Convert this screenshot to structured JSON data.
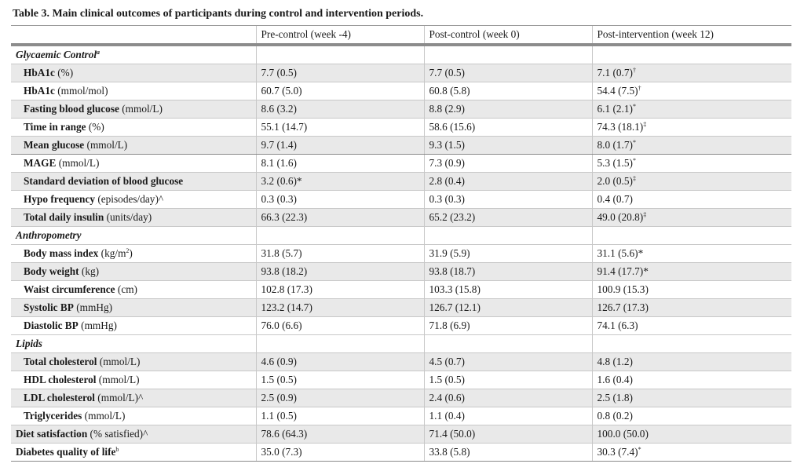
{
  "table": {
    "caption": "Table 3.  Main clinical outcomes of participants during control and intervention periods.",
    "headers": [
      "",
      "Pre-control (week -4)",
      "Post-control (week 0)",
      "Post-intervention (week 12)"
    ],
    "rows": [
      {
        "type": "section",
        "label": "Glycaemic Control",
        "sup": "a"
      },
      {
        "type": "data",
        "bold": "HbA1c",
        "rest": " (%)",
        "sup": "",
        "c1": "7.7 (0.5)",
        "c2": "7.7 (0.5)",
        "c3": "7.1 (0.7)",
        "c3sup": "†",
        "shade": true
      },
      {
        "type": "data",
        "bold": "HbA1c",
        "rest": " (mmol/mol)",
        "sup": "",
        "c1": "60.7 (5.0)",
        "c2": "60.8 (5.8)",
        "c3": "54.4 (7.5)",
        "c3sup": "†",
        "shade": false
      },
      {
        "type": "data",
        "bold": "Fasting blood glucose",
        "rest": " (mmol/L)",
        "sup": "",
        "c1": "8.6 (3.2)",
        "c2": "8.8 (2.9)",
        "c3": "6.1 (2.1)",
        "c3sup": "*",
        "shade": true
      },
      {
        "type": "data",
        "bold": "Time in range",
        "rest": " (%)",
        "sup": "",
        "c1": "55.1 (14.7)",
        "c2": "58.6 (15.6)",
        "c3": "74.3 (18.1)",
        "c3sup": "‡",
        "shade": false
      },
      {
        "type": "data",
        "bold": "Mean glucose",
        "rest": " (mmol/L)",
        "sup": "",
        "c1": "9.7 (1.4)",
        "c2": "9.3 (1.5)",
        "c3": "8.0 (1.7)",
        "c3sup": "*",
        "shade": true,
        "groupEnd": true
      },
      {
        "type": "data",
        "bold": "MAGE",
        "rest": " (mmol/L)",
        "sup": "",
        "c1": "8.1 (1.6)",
        "c2": "7.3 (0.9)",
        "c3": "5.3 (1.5)",
        "c3sup": "*",
        "shade": false
      },
      {
        "type": "data",
        "bold": "Standard deviation of blood glucose",
        "rest": "",
        "sup": "",
        "c1": "3.2 (0.6)*",
        "c2": "2.8 (0.4)",
        "c3": "2.0 (0.5)",
        "c3sup": "‡",
        "shade": true
      },
      {
        "type": "data",
        "bold": "Hypo frequency",
        "rest": " (episodes/day)^",
        "sup": "",
        "c1": "0.3 (0.3)",
        "c2": "0.3 (0.3)",
        "c3": "0.4 (0.7)",
        "c3sup": "",
        "shade": false
      },
      {
        "type": "data",
        "bold": "Total daily insulin",
        "rest": " (units/day)",
        "sup": "",
        "c1": "66.3 (22.3)",
        "c2": "65.2 (23.2)",
        "c3": "49.0 (20.8)",
        "c3sup": "‡",
        "shade": true
      },
      {
        "type": "section",
        "label": "Anthropometry",
        "sup": ""
      },
      {
        "type": "data",
        "bold": "Body mass index",
        "rest": " (kg/m",
        "sup": "2",
        "tail": ")",
        "c1": "31.8 (5.7)",
        "c2": "31.9 (5.9)",
        "c3": "31.1 (5.6)*",
        "c3sup": "",
        "shade": false
      },
      {
        "type": "data",
        "bold": "Body weight",
        "rest": " (kg)",
        "sup": "",
        "c1": "93.8 (18.2)",
        "c2": "93.8 (18.7)",
        "c3": "91.4 (17.7)*",
        "c3sup": "",
        "shade": true
      },
      {
        "type": "data",
        "bold": "Waist circumference",
        "rest": " (cm)",
        "sup": "",
        "c1": "102.8 (17.3)",
        "c2": "103.3 (15.8)",
        "c3": "100.9 (15.3)",
        "c3sup": "",
        "shade": false
      },
      {
        "type": "data",
        "bold": "Systolic BP",
        "rest": " (mmHg)",
        "sup": "",
        "c1": "123.2 (14.7)",
        "c2": "126.7 (12.1)",
        "c3": "126.7 (17.3)",
        "c3sup": "",
        "shade": true
      },
      {
        "type": "data",
        "bold": "Diastolic BP",
        "rest": " (mmHg)",
        "sup": "",
        "c1": "76.0 (6.6)",
        "c2": "71.8 (6.9)",
        "c3": "74.1 (6.3)",
        "c3sup": "",
        "shade": false
      },
      {
        "type": "section",
        "label": "Lipids",
        "sup": ""
      },
      {
        "type": "data",
        "bold": "Total cholesterol",
        "rest": " (mmol/L)",
        "sup": "",
        "c1": "4.6 (0.9)",
        "c2": "4.5 (0.7)",
        "c3": "4.8 (1.2)",
        "c3sup": "",
        "shade": true
      },
      {
        "type": "data",
        "bold": "HDL cholesterol",
        "rest": " (mmol/L)",
        "sup": "",
        "c1": "1.5 (0.5)",
        "c2": "1.5 (0.5)",
        "c3": "1.6 (0.4)",
        "c3sup": "",
        "shade": false
      },
      {
        "type": "data",
        "bold": "LDL cholesterol",
        "rest": " (mmol/L)^",
        "sup": "",
        "c1": "2.5 (0.9)",
        "c2": "2.4 (0.6)",
        "c3": "2.5 (1.8)",
        "c3sup": "",
        "shade": true
      },
      {
        "type": "data",
        "bold": "Triglycerides",
        "rest": " (mmol/L)",
        "sup": "",
        "c1": "1.1 (0.5)",
        "c2": "1.1 (0.4)",
        "c3": "0.8 (0.2)",
        "c3sup": "",
        "shade": false
      },
      {
        "type": "data",
        "top": true,
        "bold": "Diet satisfaction",
        "rest": " (% satisfied)^",
        "sup": "",
        "c1": "78.6 (64.3)",
        "c2": "71.4 (50.0)",
        "c3": "100.0 (50.0)",
        "c3sup": "",
        "shade": true
      },
      {
        "type": "data",
        "top": true,
        "bold": "Diabetes quality of life",
        "rest": "",
        "sup": "b",
        "c1": "35.0 (7.3)",
        "c2": "33.8 (5.8)",
        "c3": "30.3 (7.4)",
        "c3sup": "*",
        "shade": false,
        "last": true
      }
    ]
  }
}
